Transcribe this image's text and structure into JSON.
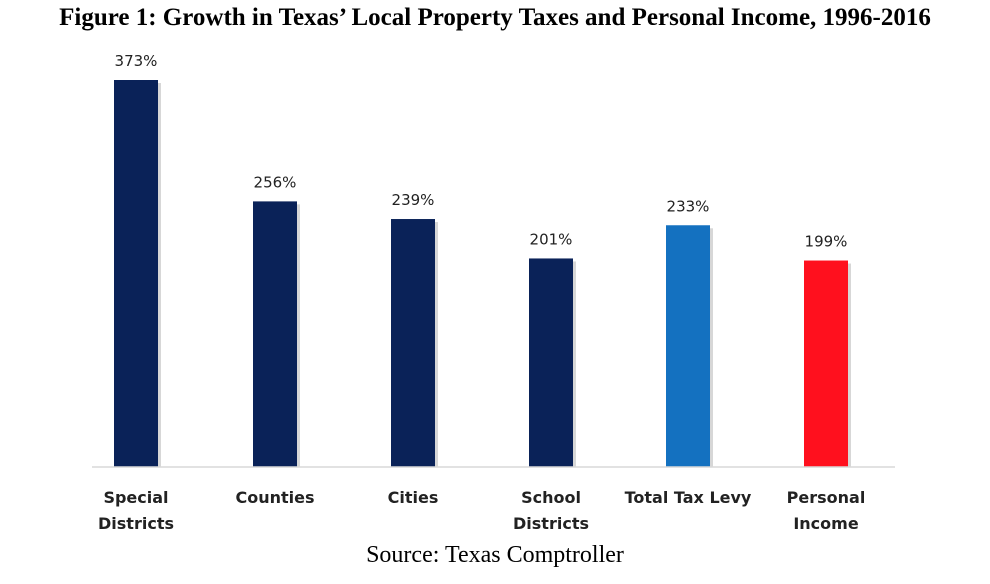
{
  "figure": {
    "title": "Figure 1: Growth in Texas’ Local Property Taxes and Personal Income, 1996-2016",
    "source": "Source: Texas Comptroller"
  },
  "colors": {
    "navy": "#0a2258",
    "blue": "#1471c0",
    "red": "#ff101e",
    "axis": "#d9d9d9"
  },
  "chart_data": {
    "type": "bar",
    "title": "Figure 1: Growth in Texas’ Local Property Taxes and Personal Income, 1996-2016",
    "xlabel": "",
    "ylabel": "",
    "ylim": [
      0,
      400
    ],
    "grid": false,
    "legend": "none",
    "categories": [
      [
        "Special",
        "Districts"
      ],
      [
        "Counties"
      ],
      [
        "Cities"
      ],
      [
        "School",
        "Districts"
      ],
      [
        "Total Tax Levy"
      ],
      [
        "Personal",
        "Income"
      ]
    ],
    "values": [
      373,
      256,
      239,
      201,
      233,
      199
    ],
    "value_labels": [
      "373%",
      "256%",
      "239%",
      "201%",
      "233%",
      "199%"
    ],
    "bar_colors": [
      "#0a2258",
      "#0a2258",
      "#0a2258",
      "#0a2258",
      "#1471c0",
      "#ff101e"
    ]
  }
}
